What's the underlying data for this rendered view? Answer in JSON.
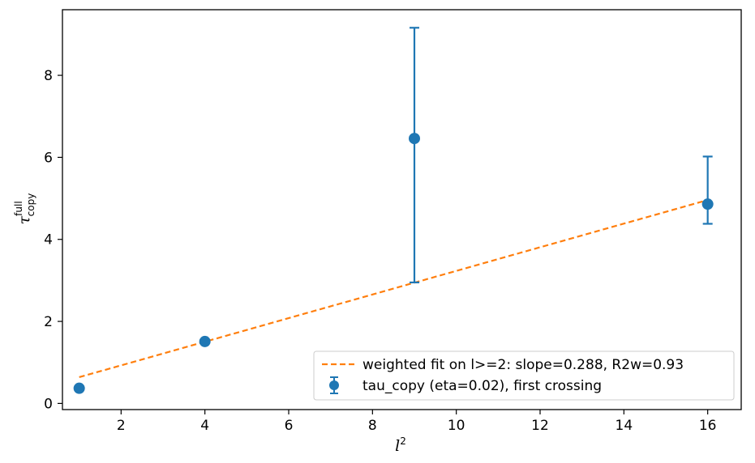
{
  "chart_data": {
    "type": "scatter",
    "xlabel": {
      "base": "l",
      "sup": "2"
    },
    "ylabel": {
      "base": "τ",
      "sup": "full",
      "sub": "copy"
    },
    "xlim": [
      0.6,
      16.8
    ],
    "ylim": [
      -0.15,
      9.6
    ],
    "x_ticks": [
      2,
      4,
      6,
      8,
      10,
      12,
      14,
      16
    ],
    "y_ticks": [
      0,
      2,
      4,
      6,
      8
    ],
    "grid": false,
    "legend_position": "lower-right",
    "series": [
      {
        "name": "tau_copy (eta=0.02), first crossing",
        "kind": "errorbar",
        "color": "#1f77b4",
        "points": [
          {
            "x": 1,
            "y": 0.37,
            "low": 0.37,
            "high": 0.37
          },
          {
            "x": 4,
            "y": 1.51,
            "low": 1.51,
            "high": 1.51
          },
          {
            "x": 9,
            "y": 6.46,
            "low": 2.95,
            "high": 9.16
          },
          {
            "x": 16,
            "y": 4.86,
            "low": 4.38,
            "high": 6.02
          }
        ]
      },
      {
        "name": "weighted fit on l>=2: slope=0.288, R2w=0.93",
        "kind": "line",
        "style": "dashed",
        "color": "#ff7f0e",
        "x": [
          1,
          16
        ],
        "y": [
          0.64,
          4.96
        ]
      }
    ]
  }
}
